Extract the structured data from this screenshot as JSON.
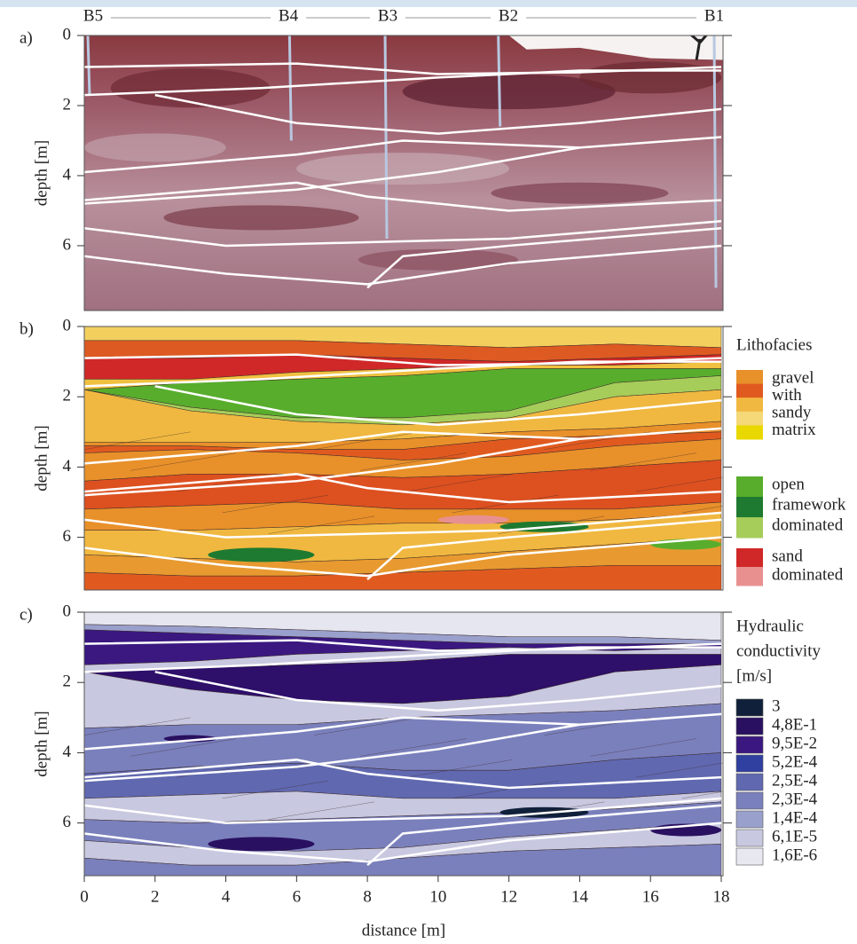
{
  "boreholes": [
    "B5",
    "B4",
    "B3",
    "B2",
    "B1"
  ],
  "panels": [
    {
      "label": "a)",
      "y_label": "depth [m]",
      "ylim": [
        0,
        7.85
      ],
      "yticks": [
        0,
        2,
        4,
        6
      ]
    },
    {
      "label": "b)",
      "y_label": "depth [m]",
      "ylim": [
        0,
        7.5
      ],
      "yticks": [
        0,
        2,
        4,
        6
      ]
    },
    {
      "label": "c)",
      "y_label": "depth [m]",
      "ylim": [
        0,
        7.5
      ],
      "yticks": [
        0,
        2,
        4,
        6
      ]
    }
  ],
  "x_axis": {
    "label": "distance [m]",
    "xlim": [
      0,
      18
    ],
    "ticks": [
      0,
      2,
      4,
      6,
      8,
      10,
      12,
      14,
      16,
      18
    ]
  },
  "lithofacies_legend": {
    "title": "Lithofacies",
    "groups": [
      {
        "colors": [
          "#e8902a",
          "#e05a20",
          "#f0b840",
          "#f5d878",
          "#e8d800"
        ],
        "lines": [
          "gravel",
          "with",
          "sandy",
          "matrix"
        ]
      },
      {
        "colors": [
          "#58ad2c",
          "#1e7a30",
          "#a6cc5a"
        ],
        "lines": [
          "open",
          "framework",
          "dominated"
        ]
      },
      {
        "colors": [
          "#d02828",
          "#e89090"
        ],
        "lines": [
          "sand",
          "dominated"
        ]
      }
    ]
  },
  "conductivity_legend": {
    "title_lines": [
      "Hydraulic",
      "conductivity",
      "[m/s]"
    ],
    "items": [
      {
        "label": "3",
        "color": "#10203a"
      },
      {
        "label": "4,8E-1",
        "color": "#2a1060"
      },
      {
        "label": "9,5E-2",
        "color": "#3a1880"
      },
      {
        "label": "5,2E-4",
        "color": "#3040a0"
      },
      {
        "label": "2,5E-4",
        "color": "#6068b0"
      },
      {
        "label": "2,3E-4",
        "color": "#7a80bc"
      },
      {
        "label": "1,4E-4",
        "color": "#9aa0cc"
      },
      {
        "label": "6,1E-5",
        "color": "#c8c8e0"
      },
      {
        "label": "1,6E-6",
        "color": "#e8e8f0"
      }
    ]
  }
}
